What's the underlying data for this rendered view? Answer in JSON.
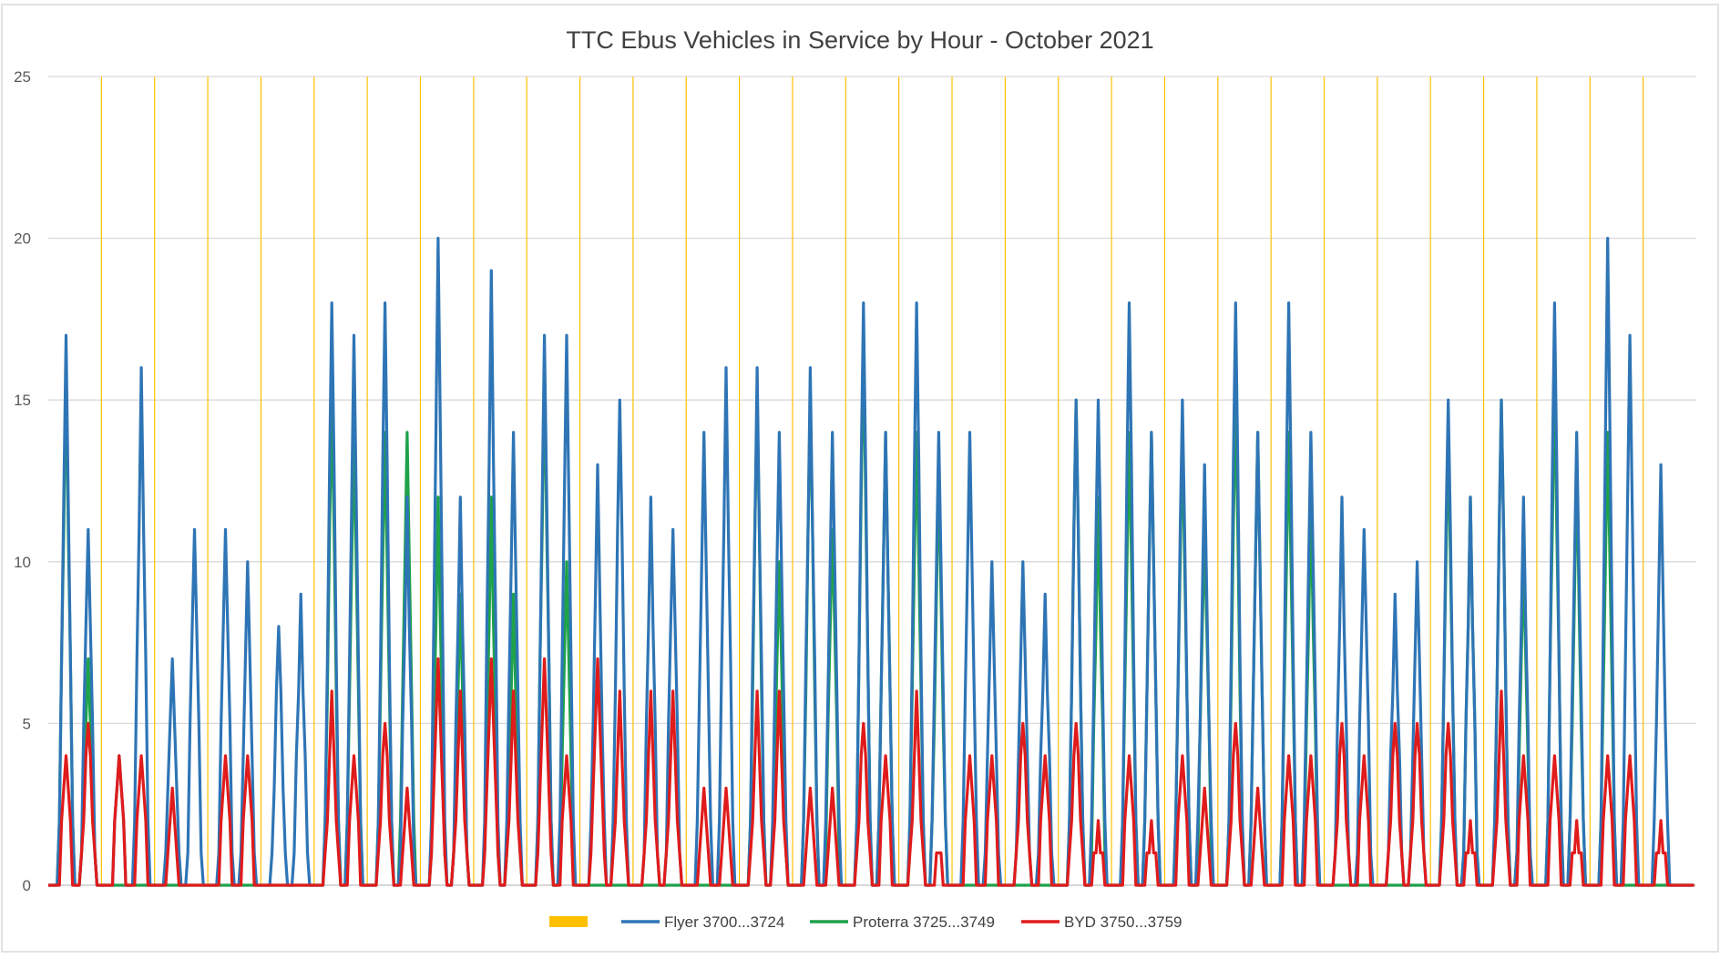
{
  "chart_data": {
    "type": "line",
    "title": "TTC Ebus Vehicles in Service by Hour - October 2021",
    "xlabel": "",
    "ylabel": "",
    "ylim": [
      0,
      25
    ],
    "yticks": [
      0,
      5,
      10,
      15,
      20,
      25
    ],
    "grid": true,
    "legend_position": "bottom",
    "day_markers": {
      "name": "",
      "color": "#ffc000",
      "count": 31
    },
    "series": [
      {
        "name": "Flyer 3700...3724",
        "color": "#2e75b6",
        "peaks": [
          [
            [
              8,
              17
            ],
            [
              18,
              11
            ]
          ],
          [
            [
              8,
              4
            ],
            [
              18,
              16
            ]
          ],
          [
            [
              8,
              7
            ],
            [
              18,
              11
            ]
          ],
          [
            [
              8,
              11
            ],
            [
              18,
              10
            ]
          ],
          [
            [
              8,
              8
            ],
            [
              18,
              9
            ]
          ],
          [
            [
              8,
              18
            ],
            [
              18,
              17
            ]
          ],
          [
            [
              8,
              18
            ],
            [
              18,
              12
            ]
          ],
          [
            [
              8,
              20
            ],
            [
              18,
              12
            ]
          ],
          [
            [
              8,
              19
            ],
            [
              18,
              14
            ]
          ],
          [
            [
              8,
              17
            ],
            [
              18,
              17
            ]
          ],
          [
            [
              8,
              13
            ],
            [
              18,
              15
            ]
          ],
          [
            [
              8,
              12
            ],
            [
              18,
              11
            ]
          ],
          [
            [
              8,
              14
            ],
            [
              18,
              16
            ]
          ],
          [
            [
              8,
              16
            ],
            [
              18,
              14
            ]
          ],
          [
            [
              8,
              16
            ],
            [
              18,
              14
            ]
          ],
          [
            [
              8,
              18
            ],
            [
              18,
              14
            ]
          ],
          [
            [
              8,
              18
            ],
            [
              18,
              14
            ]
          ],
          [
            [
              8,
              14
            ],
            [
              18,
              10
            ]
          ],
          [
            [
              8,
              10
            ],
            [
              18,
              9
            ]
          ],
          [
            [
              8,
              15
            ],
            [
              18,
              15
            ]
          ],
          [
            [
              8,
              18
            ],
            [
              18,
              14
            ]
          ],
          [
            [
              8,
              15
            ],
            [
              18,
              13
            ]
          ],
          [
            [
              8,
              18
            ],
            [
              18,
              14
            ]
          ],
          [
            [
              8,
              18
            ],
            [
              18,
              14
            ]
          ],
          [
            [
              8,
              12
            ],
            [
              18,
              11
            ]
          ],
          [
            [
              8,
              9
            ],
            [
              18,
              10
            ]
          ],
          [
            [
              8,
              15
            ],
            [
              18,
              12
            ]
          ],
          [
            [
              8,
              15
            ],
            [
              18,
              12
            ]
          ],
          [
            [
              8,
              18
            ],
            [
              18,
              14
            ]
          ],
          [
            [
              8,
              20
            ],
            [
              18,
              17
            ]
          ],
          [
            [
              8,
              13
            ],
            [
              18,
              0
            ]
          ]
        ]
      },
      {
        "name": "Proterra 3725...3749",
        "color": "#1ea24a",
        "peaks": [
          [
            [
              8,
              16
            ],
            [
              18,
              7
            ]
          ],
          [
            [
              8,
              0
            ],
            [
              18,
              0
            ]
          ],
          [
            [
              8,
              0
            ],
            [
              18,
              0
            ]
          ],
          [
            [
              8,
              0
            ],
            [
              18,
              0
            ]
          ],
          [
            [
              8,
              0
            ],
            [
              18,
              0
            ]
          ],
          [
            [
              8,
              15
            ],
            [
              18,
              14
            ]
          ],
          [
            [
              8,
              14
            ],
            [
              18,
              14
            ]
          ],
          [
            [
              8,
              12
            ],
            [
              18,
              9
            ]
          ],
          [
            [
              8,
              12
            ],
            [
              18,
              9
            ]
          ],
          [
            [
              8,
              16
            ],
            [
              18,
              10
            ]
          ],
          [
            [
              8,
              0
            ],
            [
              18,
              0
            ]
          ],
          [
            [
              8,
              0
            ],
            [
              18,
              0
            ]
          ],
          [
            [
              8,
              0
            ],
            [
              18,
              0
            ]
          ],
          [
            [
              8,
              15
            ],
            [
              18,
              10
            ]
          ],
          [
            [
              8,
              15
            ],
            [
              18,
              11
            ]
          ],
          [
            [
              8,
              17
            ],
            [
              18,
              14
            ]
          ],
          [
            [
              8,
              14
            ],
            [
              18,
              13
            ]
          ],
          [
            [
              8,
              0
            ],
            [
              18,
              0
            ]
          ],
          [
            [
              8,
              0
            ],
            [
              18,
              0
            ]
          ],
          [
            [
              8,
              15
            ],
            [
              18,
              12
            ]
          ],
          [
            [
              8,
              14
            ],
            [
              18,
              14
            ]
          ],
          [
            [
              8,
              14
            ],
            [
              18,
              11
            ]
          ],
          [
            [
              8,
              15
            ],
            [
              18,
              14
            ]
          ],
          [
            [
              8,
              14
            ],
            [
              18,
              12
            ]
          ],
          [
            [
              8,
              0
            ],
            [
              18,
              0
            ]
          ],
          [
            [
              8,
              0
            ],
            [
              18,
              0
            ]
          ],
          [
            [
              8,
              14
            ],
            [
              18,
              12
            ]
          ],
          [
            [
              8,
              15
            ],
            [
              18,
              10
            ]
          ],
          [
            [
              8,
              16
            ],
            [
              18,
              13
            ]
          ],
          [
            [
              8,
              14
            ],
            [
              18,
              0
            ]
          ],
          [
            [
              8,
              0
            ],
            [
              18,
              0
            ]
          ]
        ]
      },
      {
        "name": "BYD 3750...3759",
        "color": "#e01b1b",
        "peaks": [
          [
            [
              8,
              4
            ],
            [
              18,
              5
            ]
          ],
          [
            [
              8,
              4
            ],
            [
              18,
              4
            ]
          ],
          [
            [
              8,
              3
            ],
            [
              18,
              0
            ]
          ],
          [
            [
              8,
              4
            ],
            [
              18,
              4
            ]
          ],
          [
            [
              8,
              0
            ],
            [
              18,
              0
            ]
          ],
          [
            [
              8,
              6
            ],
            [
              18,
              4
            ]
          ],
          [
            [
              8,
              5
            ],
            [
              18,
              3
            ]
          ],
          [
            [
              8,
              7
            ],
            [
              18,
              6
            ]
          ],
          [
            [
              8,
              7
            ],
            [
              18,
              6
            ]
          ],
          [
            [
              8,
              7
            ],
            [
              18,
              4
            ]
          ],
          [
            [
              8,
              7
            ],
            [
              18,
              6
            ]
          ],
          [
            [
              8,
              6
            ],
            [
              18,
              6
            ]
          ],
          [
            [
              8,
              3
            ],
            [
              18,
              3
            ]
          ],
          [
            [
              8,
              6
            ],
            [
              18,
              6
            ]
          ],
          [
            [
              8,
              3
            ],
            [
              18,
              3
            ]
          ],
          [
            [
              8,
              5
            ],
            [
              18,
              4
            ]
          ],
          [
            [
              8,
              6
            ],
            [
              18,
              1
            ]
          ],
          [
            [
              8,
              4
            ],
            [
              18,
              4
            ]
          ],
          [
            [
              8,
              5
            ],
            [
              18,
              4
            ]
          ],
          [
            [
              8,
              5
            ],
            [
              18,
              2
            ]
          ],
          [
            [
              8,
              4
            ],
            [
              18,
              2
            ]
          ],
          [
            [
              8,
              4
            ],
            [
              18,
              3
            ]
          ],
          [
            [
              8,
              5
            ],
            [
              18,
              3
            ]
          ],
          [
            [
              8,
              4
            ],
            [
              18,
              4
            ]
          ],
          [
            [
              8,
              5
            ],
            [
              18,
              4
            ]
          ],
          [
            [
              8,
              5
            ],
            [
              18,
              5
            ]
          ],
          [
            [
              8,
              5
            ],
            [
              18,
              2
            ]
          ],
          [
            [
              8,
              6
            ],
            [
              18,
              4
            ]
          ],
          [
            [
              8,
              4
            ],
            [
              18,
              2
            ]
          ],
          [
            [
              8,
              4
            ],
            [
              18,
              4
            ]
          ],
          [
            [
              8,
              2
            ],
            [
              18,
              0
            ]
          ]
        ]
      }
    ]
  }
}
